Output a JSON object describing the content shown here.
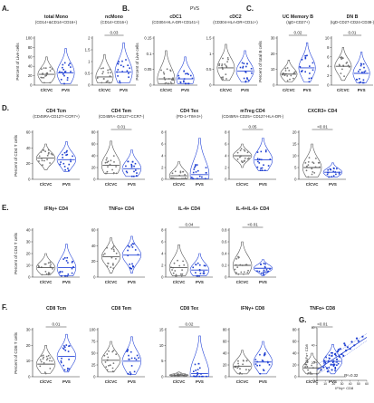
{
  "colors": {
    "ctrl": "#555555",
    "pvs": "#1f3fd1",
    "violin_pvs": "#2746d8",
    "text": "#222222"
  },
  "pvs_note": "PVS",
  "groups": [
    "C/CVC",
    "PVS"
  ],
  "chart_data": [
    {
      "type": "violin",
      "panel": "A",
      "title": "total Mono",
      "subtitle": "(CD14+&CD14+CD16+)",
      "pvalue": "",
      "ylabel": "Percent of Live cells",
      "ylim": [
        0,
        100
      ],
      "yticks": [
        0,
        20,
        40,
        60,
        80,
        100
      ],
      "ctrl": {
        "median": 23,
        "min": 5,
        "max": 60
      },
      "pvs": {
        "median": 26,
        "min": 3,
        "max": 78
      }
    },
    {
      "type": "violin",
      "panel": "A",
      "title": "ncMono",
      "subtitle": "(CD14+CD16+)",
      "pvalue": "0.03",
      "ylabel": "",
      "ylim": [
        0,
        2.0
      ],
      "yticks": [
        0,
        0.5,
        1.0,
        1.5,
        2.0
      ],
      "ctrl": {
        "median": 0.35,
        "min": 0.1,
        "max": 1.3
      },
      "pvs": {
        "median": 0.55,
        "min": 0.1,
        "max": 1.8
      }
    },
    {
      "type": "violin",
      "panel": "B",
      "title": "cDC1",
      "subtitle": "(CD304-HLA-DR+CD141+)",
      "pvalue": "",
      "ylabel": "Percent of Live cells",
      "ylim": [
        0,
        0.15
      ],
      "yticks": [
        0,
        0.05,
        0.1,
        0.15
      ],
      "ctrl": {
        "median": 0.02,
        "min": 0.005,
        "max": 0.11
      },
      "pvs": {
        "median": 0.02,
        "min": 0.005,
        "max": 0.09
      }
    },
    {
      "type": "violin",
      "panel": "B",
      "title": "cDC2",
      "subtitle": "(CD304-HLA-DR+CD1c+)",
      "pvalue": "",
      "ylabel": "",
      "ylim": [
        0,
        1.5
      ],
      "yticks": [
        0,
        0.5,
        1.0,
        1.5
      ],
      "ctrl": {
        "median": 0.55,
        "min": 0.15,
        "max": 1.3
      },
      "pvs": {
        "median": 0.45,
        "min": 0.1,
        "max": 1.1
      }
    },
    {
      "type": "violin",
      "panel": "C",
      "title": "UC Memory B",
      "subtitle": "(IgD+CD27+)",
      "pvalue": "0.02",
      "ylabel": "Percent of total B cells",
      "ylim": [
        0,
        30
      ],
      "yticks": [
        0,
        10,
        20,
        30
      ],
      "ctrl": {
        "median": 7,
        "min": 2,
        "max": 16
      },
      "pvs": {
        "median": 11,
        "min": 2,
        "max": 27
      }
    },
    {
      "type": "violin",
      "panel": "C",
      "title": "DN B",
      "subtitle": "(IgD-CD27-CD24-CD38-)",
      "pvalue": "0.01",
      "ylabel": "",
      "ylim": [
        0,
        10
      ],
      "yticks": [
        0,
        2,
        4,
        6,
        8,
        10
      ],
      "ctrl": {
        "median": 4,
        "min": 1,
        "max": 8
      },
      "pvs": {
        "median": 2.5,
        "min": 0.5,
        "max": 7
      }
    },
    {
      "type": "violin",
      "panel": "D",
      "title": "CD4 Tcm",
      "subtitle": "(CD45RA-CD127+CCR7+)",
      "pvalue": "",
      "ylabel": "Percent of CD4 T cells",
      "ylim": [
        0,
        60
      ],
      "yticks": [
        0,
        20,
        40,
        60
      ],
      "ctrl": {
        "median": 27,
        "min": 12,
        "max": 45
      },
      "pvs": {
        "median": 25,
        "min": 10,
        "max": 48
      }
    },
    {
      "type": "violin",
      "panel": "D",
      "title": "CD4 Tem",
      "subtitle": "(CD45RA-CD127+CCR7-)",
      "pvalue": "0.01",
      "ylabel": "",
      "ylim": [
        0,
        80
      ],
      "yticks": [
        0,
        20,
        40,
        60,
        80
      ],
      "ctrl": {
        "median": 24,
        "min": 10,
        "max": 65
      },
      "pvs": {
        "median": 18,
        "min": 5,
        "max": 50
      }
    },
    {
      "type": "violin",
      "panel": "D",
      "title": "CD4 Tex",
      "subtitle": "(PD-1+TIM-3+)",
      "pvalue": "",
      "ylabel": "",
      "ylim": [
        0,
        8
      ],
      "yticks": [
        0,
        2,
        4,
        6,
        8
      ],
      "ctrl": {
        "median": 0.6,
        "min": 0.1,
        "max": 3
      },
      "pvs": {
        "median": 0.8,
        "min": 0.1,
        "max": 7
      }
    },
    {
      "type": "violin",
      "panel": "D",
      "title": "mTreg CD4",
      "subtitle": "(CD45RA-CD25+ CD127-HLA-DR-)",
      "pvalue": "0.05",
      "ylabel": "",
      "ylim": [
        0,
        8
      ],
      "yticks": [
        0,
        2,
        4,
        6,
        8
      ],
      "ctrl": {
        "median": 4,
        "min": 2,
        "max": 6
      },
      "pvs": {
        "median": 3.3,
        "min": 1.5,
        "max": 7
      }
    },
    {
      "type": "violin",
      "panel": "D",
      "title": "CXCR3+ CD4",
      "subtitle": "",
      "pvalue": "<0.01",
      "ylabel": "",
      "ylim": [
        0,
        20
      ],
      "yticks": [
        0,
        5,
        10,
        15,
        20
      ],
      "ctrl": {
        "median": 5,
        "min": 1,
        "max": 15
      },
      "pvs": {
        "median": 3,
        "min": 1,
        "max": 7
      }
    },
    {
      "type": "violin",
      "panel": "E",
      "title": "IFNγ+ CD4",
      "subtitle": "",
      "pvalue": "",
      "ylabel": "Percent of CD4 T cells",
      "ylim": [
        0,
        40
      ],
      "yticks": [
        0,
        10,
        20,
        30,
        40
      ],
      "ctrl": {
        "median": 8,
        "min": 2,
        "max": 20
      },
      "pvs": {
        "median": 8,
        "min": 1,
        "max": 28
      }
    },
    {
      "type": "violin",
      "panel": "E",
      "title": "TNFα+ CD4",
      "subtitle": "",
      "pvalue": "",
      "ylabel": "",
      "ylim": [
        0,
        60
      ],
      "yticks": [
        0,
        20,
        40,
        60
      ],
      "ctrl": {
        "median": 26,
        "min": 5,
        "max": 50
      },
      "pvs": {
        "median": 28,
        "min": 5,
        "max": 52
      }
    },
    {
      "type": "violin",
      "panel": "E",
      "title": "IL-4+ CD4",
      "subtitle": "",
      "pvalue": "0.04",
      "ylabel": "",
      "ylim": [
        0,
        8
      ],
      "yticks": [
        0,
        2,
        4,
        6,
        8
      ],
      "ctrl": {
        "median": 1.6,
        "min": 0.2,
        "max": 5.5
      },
      "pvs": {
        "median": 1.2,
        "min": 0.2,
        "max": 4
      }
    },
    {
      "type": "violin",
      "panel": "E",
      "title": "IL-4+IL-6+ CD4",
      "subtitle": "",
      "pvalue": "<0.01",
      "ylabel": "",
      "ylim": [
        0,
        0.8
      ],
      "yticks": [
        0,
        0.2,
        0.4,
        0.6,
        0.8
      ],
      "ctrl": {
        "median": 0.2,
        "min": 0.05,
        "max": 0.6
      },
      "pvs": {
        "median": 0.15,
        "min": 0.02,
        "max": 0.3
      }
    },
    {
      "type": "violin",
      "panel": "F",
      "title": "CD8 Tcm",
      "subtitle": "",
      "pvalue": "0.01",
      "ylabel": "Percent of CD8 T cells",
      "ylim": [
        0,
        30
      ],
      "yticks": [
        0,
        10,
        20,
        30
      ],
      "ctrl": {
        "median": 8,
        "min": 2,
        "max": 20
      },
      "pvs": {
        "median": 13,
        "min": 3,
        "max": 27
      }
    },
    {
      "type": "violin",
      "panel": "F",
      "title": "CD8 Tem",
      "subtitle": "",
      "pvalue": "",
      "ylabel": "",
      "ylim": [
        0,
        100
      ],
      "yticks": [
        0,
        25,
        50,
        75,
        100
      ],
      "ctrl": {
        "median": 35,
        "min": 10,
        "max": 75
      },
      "pvs": {
        "median": 33,
        "min": 5,
        "max": 85
      }
    },
    {
      "type": "violin",
      "panel": "F",
      "title": "CD8 Tex",
      "subtitle": "",
      "pvalue": "0.02",
      "ylabel": "",
      "ylim": [
        0,
        15
      ],
      "yticks": [
        0,
        5,
        10,
        15
      ],
      "ctrl": {
        "median": 0.5,
        "min": 0.1,
        "max": 1.5
      },
      "pvs": {
        "median": 1.0,
        "min": 0.1,
        "max": 13
      }
    },
    {
      "type": "violin",
      "panel": "F",
      "title": "IFNγ+ CD8",
      "subtitle": "",
      "pvalue": "",
      "ylabel": "",
      "ylim": [
        0,
        80
      ],
      "yticks": [
        0,
        20,
        40,
        60,
        80
      ],
      "ctrl": {
        "median": 18,
        "min": 5,
        "max": 45
      },
      "pvs": {
        "median": 25,
        "min": 5,
        "max": 60
      }
    },
    {
      "type": "violin",
      "panel": "F",
      "title": "TNFα+ CD8",
      "subtitle": "",
      "pvalue": "<0.01",
      "ylabel": "",
      "ylim": [
        0,
        80
      ],
      "yticks": [
        0,
        20,
        40,
        60,
        80
      ],
      "ctrl": {
        "median": 15,
        "min": 5,
        "max": 40
      },
      "pvs": {
        "median": 26,
        "min": 5,
        "max": 55
      }
    },
    {
      "type": "scatter",
      "panel": "G",
      "xlabel": "IFNγ+ CD8",
      "ylabel": "TNFα+ CD8",
      "annotation": "R²=0.32",
      "xlim": [
        0,
        60
      ],
      "ylim": [
        0,
        60
      ],
      "xticks": [
        0,
        10,
        20,
        30,
        40,
        50,
        60
      ],
      "yticks": [
        0,
        20,
        40,
        60
      ],
      "x": [
        5,
        8,
        10,
        12,
        14,
        15,
        17,
        18,
        20,
        22,
        24,
        25,
        27,
        28,
        30,
        32,
        34,
        35,
        37,
        40,
        42,
        45,
        48,
        50,
        55,
        9,
        13,
        21,
        26,
        33
      ],
      "y": [
        12,
        15,
        20,
        14,
        22,
        25,
        18,
        28,
        22,
        30,
        24,
        33,
        27,
        36,
        30,
        28,
        40,
        34,
        38,
        36,
        44,
        40,
        48,
        45,
        50,
        22,
        10,
        18,
        35,
        42
      ],
      "fit": {
        "slope": 0.62,
        "intercept": 12
      }
    }
  ]
}
